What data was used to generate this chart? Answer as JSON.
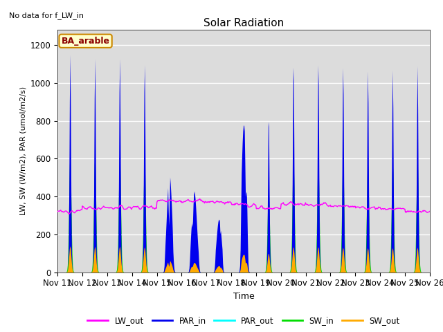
{
  "title": "Solar Radiation",
  "subtitle": "No data for f_LW_in",
  "xlabel": "Time",
  "ylabel": "LW, SW (W/m2), PAR (umol/m2/s)",
  "ylim": [
    0,
    1280
  ],
  "yticks": [
    0,
    200,
    400,
    600,
    800,
    1000,
    1200
  ],
  "xtick_labels": [
    "Nov 11",
    "Nov 12",
    "Nov 13",
    "Nov 14",
    "Nov 15",
    "Nov 16",
    "Nov 17",
    "Nov 18",
    "Nov 19",
    "Nov 20",
    "Nov 21",
    "Nov 22",
    "Nov 23",
    "Nov 24",
    "Nov 25",
    "Nov 26"
  ],
  "colors": {
    "LW_out": "#ff00ff",
    "PAR_in": "#0000ee",
    "PAR_out": "#00ffff",
    "SW_in": "#00dd00",
    "SW_out": "#ffaa00"
  },
  "box_label": "BA_arable",
  "background_color": "#dcdcdc",
  "figure_bg": "#ffffff"
}
